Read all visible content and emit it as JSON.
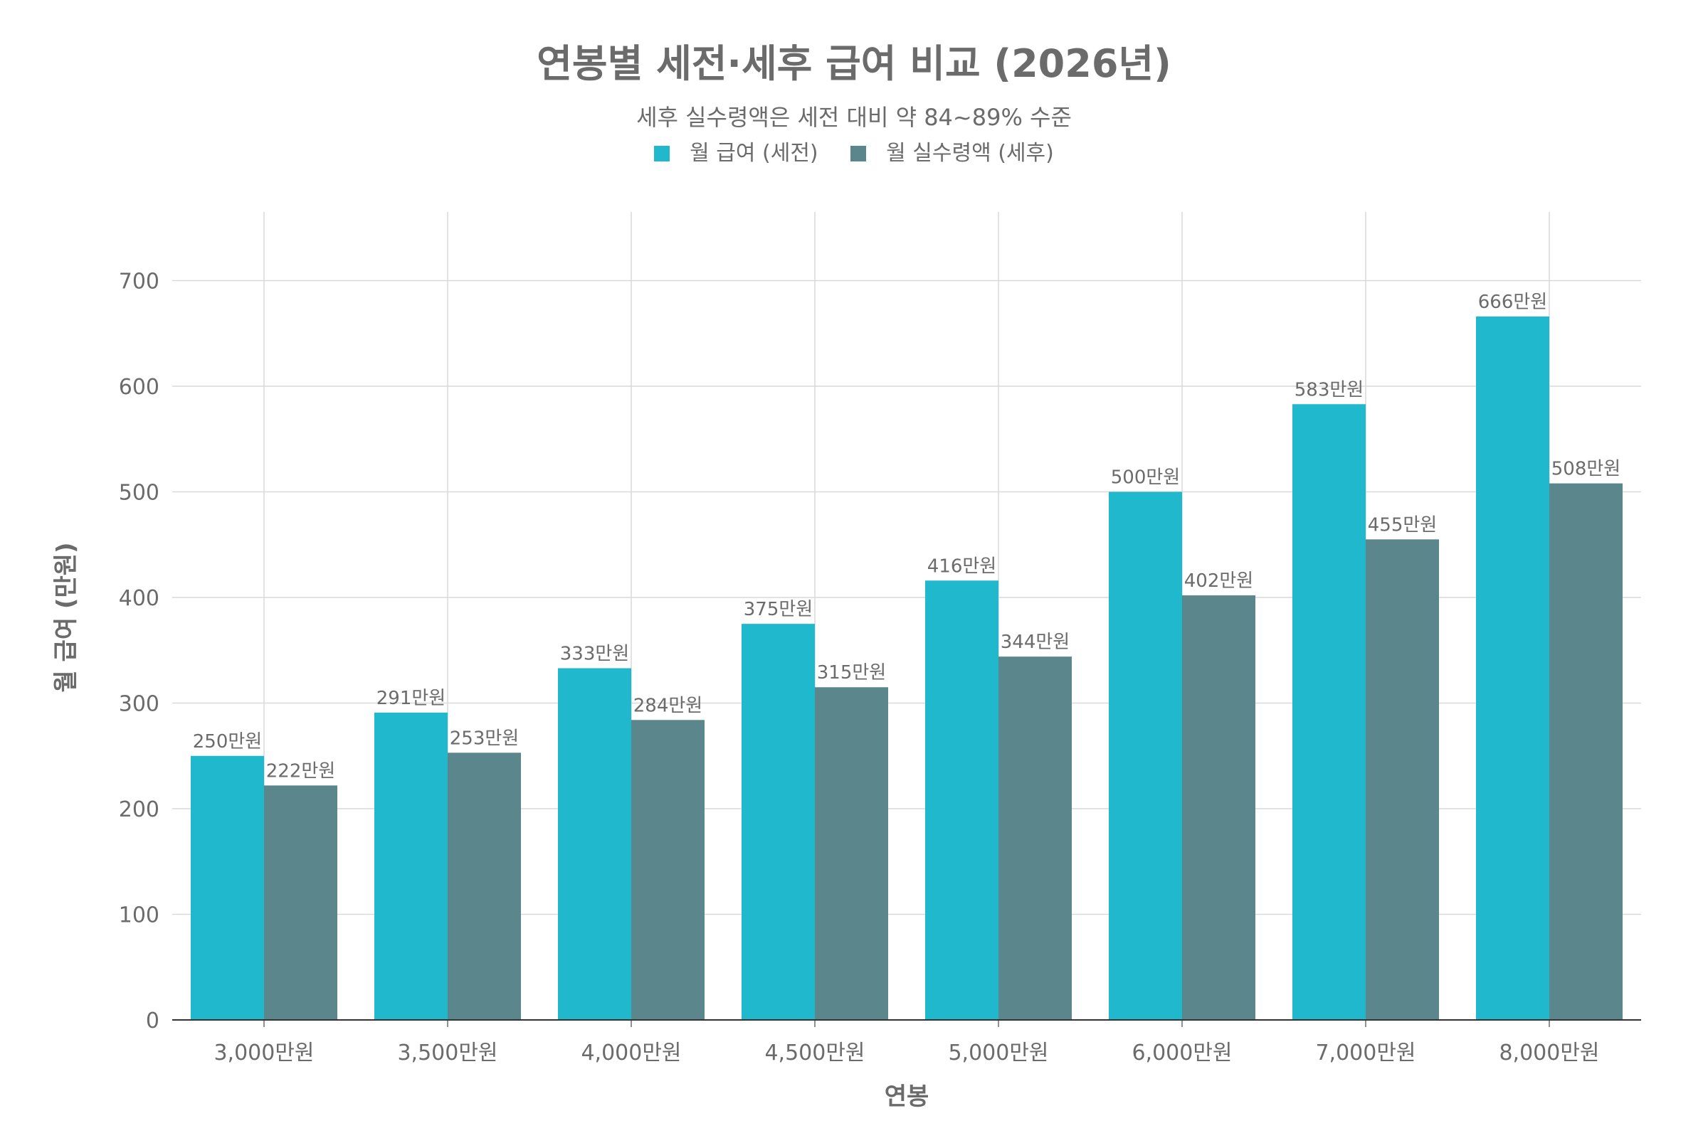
{
  "chart_data": {
    "type": "bar",
    "title": "연봉별 세전·세후 급여 비교 (2026년)",
    "subtitle": "세후 실수령액은 세전 대비 약 84~89% 수준",
    "xlabel": "연봉",
    "ylabel": "월 급여 (만원)",
    "categories": [
      "3,000만원",
      "3,500만원",
      "4,000만원",
      "4,500만원",
      "5,000만원",
      "6,000만원",
      "7,000만원",
      "8,000만원"
    ],
    "series": [
      {
        "name": "월 급여 (세전)",
        "color": "#20b8cc",
        "values": [
          250,
          291,
          333,
          375,
          416,
          500,
          583,
          666
        ],
        "labels": [
          "250만원",
          "291만원",
          "333만원",
          "375만원",
          "416만원",
          "500만원",
          "583만원",
          "666만원"
        ]
      },
      {
        "name": "월 실수령액 (세후)",
        "color": "#5b878c",
        "values": [
          222,
          253,
          284,
          315,
          344,
          402,
          455,
          508
        ],
        "labels": [
          "222만원",
          "253만원",
          "284만원",
          "315만원",
          "344만원",
          "402만원",
          "455만원",
          "508만원"
        ]
      }
    ],
    "yticks": [
      "0",
      "100",
      "200",
      "300",
      "400",
      "500",
      "600",
      "700"
    ],
    "ylim": [
      0,
      765
    ],
    "grid": true,
    "legend_position": "top-center"
  }
}
